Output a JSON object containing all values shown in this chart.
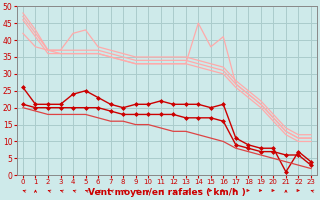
{
  "x": [
    0,
    1,
    2,
    3,
    4,
    5,
    6,
    7,
    8,
    9,
    10,
    11,
    12,
    13,
    14,
    15,
    16,
    17,
    18,
    19,
    20,
    21,
    22,
    23
  ],
  "background_color": "#ceeaea",
  "grid_color": "#aacccc",
  "xlabel": "Vent moyen/en rafales ( km/h )",
  "ylim": [
    0,
    50
  ],
  "yticks": [
    0,
    5,
    10,
    15,
    20,
    25,
    30,
    35,
    40,
    45,
    50
  ],
  "series": [
    {
      "color": "#ffaaaa",
      "lw": 0.9,
      "marker": null,
      "values": [
        48,
        43,
        37,
        37,
        42,
        43,
        38,
        37,
        36,
        35,
        35,
        35,
        35,
        35,
        34,
        33,
        32,
        28,
        25,
        22,
        18,
        14,
        12,
        12
      ]
    },
    {
      "color": "#ffaaaa",
      "lw": 0.9,
      "marker": null,
      "values": [
        42,
        38,
        37,
        36,
        36,
        36,
        36,
        35,
        34,
        33,
        33,
        33,
        33,
        33,
        45,
        38,
        41,
        27,
        24,
        21,
        17,
        13,
        11,
        11
      ]
    },
    {
      "color": "#ffaaaa",
      "lw": 0.9,
      "marker": null,
      "values": [
        47,
        42,
        37,
        37,
        37,
        37,
        37,
        36,
        35,
        34,
        34,
        34,
        34,
        34,
        33,
        32,
        31,
        27,
        24,
        21,
        17,
        13,
        11,
        11
      ]
    },
    {
      "color": "#ffaaaa",
      "lw": 0.9,
      "marker": null,
      "values": [
        46,
        41,
        36,
        36,
        36,
        36,
        36,
        35,
        34,
        33,
        33,
        33,
        33,
        33,
        32,
        31,
        30,
        26,
        23,
        20,
        16,
        12,
        10,
        10
      ]
    },
    {
      "color": "#cc0000",
      "lw": 1.0,
      "marker": "D",
      "markersize": 2,
      "values": [
        26,
        21,
        21,
        21,
        24,
        25,
        23,
        21,
        20,
        21,
        21,
        22,
        21,
        21,
        21,
        20,
        21,
        11,
        9,
        8,
        8,
        1,
        7,
        4
      ]
    },
    {
      "color": "#cc0000",
      "lw": 1.0,
      "marker": "D",
      "markersize": 2,
      "values": [
        21,
        20,
        20,
        20,
        20,
        20,
        20,
        19,
        18,
        18,
        18,
        18,
        18,
        17,
        17,
        17,
        16,
        9,
        8,
        7,
        7,
        6,
        6,
        3
      ]
    },
    {
      "color": "#dd4444",
      "lw": 0.9,
      "marker": null,
      "values": [
        20,
        19,
        18,
        18,
        18,
        18,
        17,
        16,
        16,
        15,
        15,
        14,
        13,
        13,
        12,
        11,
        10,
        8,
        7,
        6,
        5,
        4,
        3,
        2
      ]
    }
  ],
  "arrow_angles": [
    315,
    0,
    315,
    315,
    315,
    315,
    315,
    315,
    315,
    315,
    0,
    315,
    315,
    315,
    315,
    90,
    90,
    90,
    90,
    90,
    90,
    0,
    90,
    315
  ]
}
